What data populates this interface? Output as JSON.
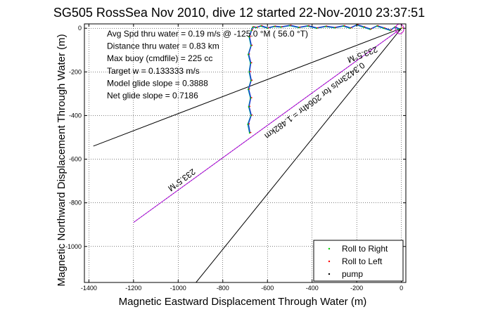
{
  "chart_data": {
    "type": "line",
    "title": "SG505 RossSea Nov 2010, dive 12 started 22-Nov-2010 23:37:51",
    "xlabel": "Magnetic Eastward Displacement Through Water (m)",
    "ylabel": "Magnetic Northward Displacement Through Water (m)",
    "xlim": [
      -1420,
      20
    ],
    "ylim": [
      -1165,
      20
    ],
    "grid": true,
    "x_ticks": [
      -1400,
      -1200,
      -1000,
      -800,
      -600,
      -400,
      -200,
      0
    ],
    "y_ticks": [
      0,
      -200,
      -400,
      -600,
      -800,
      -1000
    ],
    "x_tick_labels": [
      "-1400",
      "-1200",
      "-1000",
      "-800",
      "-600",
      "-400",
      "-200",
      "0"
    ],
    "y_tick_labels": [
      "0",
      "-200",
      "-400",
      "-600",
      "-800",
      "-1000"
    ],
    "annotations": [
      "Avg Spd thru water =  0.19 m/s @ -125.0   °M ( 56.0 °T)",
      "Distance thru water =  0.83 km",
      "Max buoy (cmdfile) = 225 cc",
      "Target w = 0.133333 m/s",
      "Model glide slope = 0.3888",
      "Net glide slope = 0.7186"
    ],
    "course_lines": [
      {
        "label": "233.5°M",
        "points": [
          [
            0,
            0
          ],
          [
            -1380,
            -540
          ]
        ]
      },
      {
        "label": "",
        "points": [
          [
            0,
            0
          ],
          [
            -920,
            -1165
          ]
        ]
      }
    ],
    "projection": {
      "label": "0.3423m/s for 2064hr = 1.482km",
      "points": [
        [
          0,
          0
        ],
        [
          -1200,
          -890
        ]
      ]
    },
    "projection_label": "233.5°M",
    "series": [
      {
        "name": "Roll to Right",
        "marker": ".",
        "color": "#00cc00",
        "x": [
          -680,
          -688,
          -674,
          -684,
          -676,
          -686,
          -674,
          -682,
          -676,
          -686,
          -674,
          -682,
          -672,
          -666,
          -650,
          -630,
          -600,
          -570,
          -540,
          -500,
          -460,
          -420,
          -380,
          -340,
          -300,
          -260,
          -230,
          -200,
          -170,
          -140,
          -110,
          -80,
          -50,
          -30,
          -10,
          0
        ],
        "y": [
          -480,
          -440,
          -400,
          -360,
          -320,
          -280,
          -240,
          -200,
          -160,
          -120,
          -80,
          -40,
          -10,
          5,
          3,
          10,
          0,
          8,
          5,
          12,
          3,
          10,
          0,
          8,
          2,
          10,
          0,
          15,
          5,
          -5,
          10,
          0,
          -10,
          5,
          -5,
          0
        ]
      },
      {
        "name": "Roll to Left",
        "marker": ".",
        "color": "#ff0000",
        "x": [
          -678,
          -685,
          -672,
          -682,
          -674,
          -684,
          -672,
          -680,
          -674,
          -684,
          -672,
          -680,
          -670,
          -664,
          -648,
          -628,
          -598,
          -568,
          -538,
          -498,
          -458,
          -418,
          -378,
          -338,
          -298,
          -258,
          -228,
          -198,
          -168,
          -138,
          -108,
          -78,
          -48,
          -28,
          -8,
          0
        ],
        "y": [
          -478,
          -438,
          -398,
          -358,
          -318,
          -278,
          -238,
          -198,
          -158,
          -118,
          -78,
          -38,
          -8,
          7,
          5,
          12,
          2,
          10,
          7,
          14,
          5,
          12,
          2,
          10,
          4,
          12,
          2,
          17,
          7,
          -3,
          12,
          2,
          -8,
          7,
          -3,
          2
        ]
      },
      {
        "name": "pump",
        "marker": ".",
        "color": "#000000",
        "x": [
          -10,
          -5
        ],
        "y": [
          -10,
          -5
        ]
      }
    ],
    "legend": {
      "location": "bottom-right",
      "entries": [
        "Roll to Right",
        "Roll to Left",
        "pump"
      ]
    },
    "colors": {
      "roll_right": "#00cc00",
      "roll_left": "#ff0000",
      "pump": "#000000",
      "track_blue": "#2233cc",
      "track_teal": "#0099aa",
      "projection": "#cc00cc"
    }
  }
}
